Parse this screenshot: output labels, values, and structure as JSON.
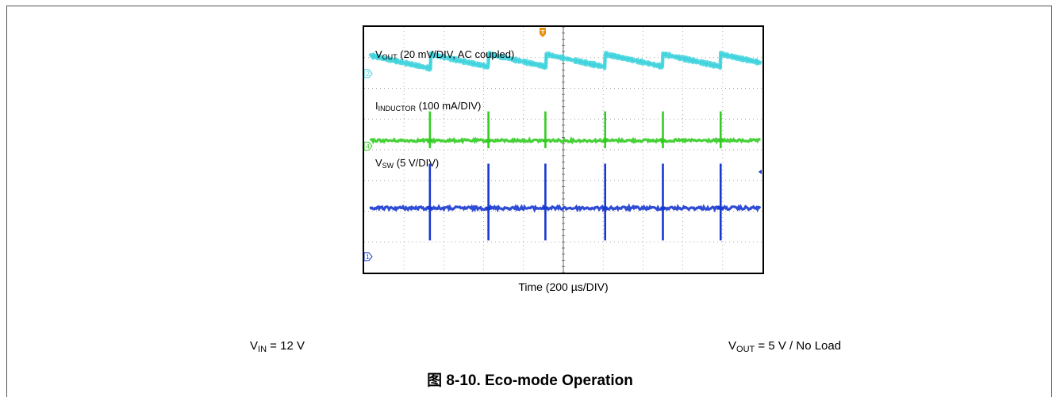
{
  "figure": {
    "caption_prefix": "图",
    "caption_text": "8-10. Eco-mode Operation",
    "conditions": {
      "vin_symbol": "V",
      "vin_sub": "IN",
      "vin_value": " = 12 V",
      "vout_symbol": "V",
      "vout_sub": "OUT",
      "vout_value": " = 5 V / No Load"
    }
  },
  "chart_data": {
    "type": "line",
    "title": "",
    "xlabel": "Time (200 µs/DIV)",
    "ylabel": "",
    "grid": true,
    "divisions": {
      "x": 10,
      "y": 8
    },
    "x_range_div": [
      0,
      10
    ],
    "colors": {
      "vout": "#3fd3dd",
      "inductor": "#33cc22",
      "vsw": "#1838d0",
      "trigger": "#e8900c",
      "frame": "#000000",
      "grid": "#8a8a8a"
    },
    "channel_markers": [
      {
        "id": "vout",
        "text": "2",
        "level_div": 1.52
      },
      {
        "id": "inductor",
        "text": "4",
        "level_div": 3.88
      },
      {
        "id": "vsw",
        "text": "1",
        "level_div": 7.48
      }
    ],
    "trigger_marker": {
      "text": "T",
      "position_div": 5.0
    },
    "series": [
      {
        "id": "vout",
        "name": "V",
        "name_sub": "OUT",
        "name_suffix": " (20 mV/DIV, AC coupled)",
        "kind": "sawtooth",
        "pulse_times_div": [
          1.65,
          3.12,
          4.55,
          6.05,
          7.5,
          8.95
        ],
        "trace_start_div": 0.15,
        "baseline_div": 1.0,
        "droop_rate_div_per_div": 0.28,
        "jump_div": 0.42,
        "noise_div": 0.06
      },
      {
        "id": "inductor",
        "name": "I",
        "name_sub": "INDUCTOR",
        "name_suffix": " (100 mA/DIV)",
        "kind": "spikes",
        "pulse_times_div": [
          1.65,
          3.12,
          4.55,
          6.05,
          7.5,
          8.95
        ],
        "trace_start_div": 0.15,
        "baseline_div": 3.7,
        "spike_up_div": 0.95,
        "spike_down_div": 0.25,
        "noise_div": 0.04
      },
      {
        "id": "vsw",
        "name": "V",
        "name_sub": "SW",
        "name_suffix": " (5 V/DIV)",
        "kind": "spikes",
        "pulse_times_div": [
          1.65,
          3.12,
          4.55,
          6.05,
          7.5,
          8.95
        ],
        "trace_start_div": 0.15,
        "baseline_div": 5.9,
        "spike_up_div": 1.45,
        "spike_down_div": 1.05,
        "noise_div": 0.05
      }
    ]
  }
}
